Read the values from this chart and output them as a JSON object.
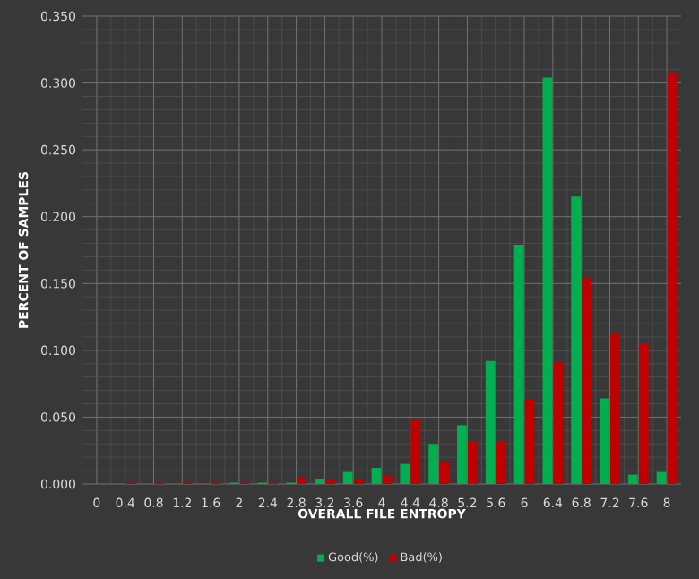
{
  "chart_data": {
    "type": "bar",
    "xlabel": "OVERALL FILE ENTROPY",
    "ylabel": "PERCENT OF SAMPLES",
    "categories": [
      "0",
      "0.4",
      "0.8",
      "1.2",
      "1.6",
      "2",
      "2.4",
      "2.8",
      "3.2",
      "3.6",
      "4",
      "4.4",
      "4.8",
      "5.2",
      "5.6",
      "6",
      "6.4",
      "6.8",
      "7.2",
      "7.6",
      "8"
    ],
    "series": [
      {
        "name": "Good(%)",
        "color": "#00b050",
        "values": [
          0,
          0,
          0,
          0,
          0,
          0.001,
          0.001,
          0.001,
          0.004,
          0.009,
          0.012,
          0.015,
          0.03,
          0.044,
          0.092,
          0.179,
          0.304,
          0.215,
          0.064,
          0.007,
          0.009
        ]
      },
      {
        "name": "Bad(%)",
        "color": "#c00000",
        "values": [
          0,
          0.001,
          0.001,
          0.001,
          0.001,
          0.001,
          0.001,
          0.005,
          0.003,
          0.004,
          0.006,
          0.048,
          0.016,
          0.032,
          0.032,
          0.063,
          0.091,
          0.154,
          0.113,
          0.105,
          0.308
        ]
      }
    ],
    "ylim": [
      0,
      0.35
    ],
    "yticks": [
      {
        "value": 0,
        "label": "0.000"
      },
      {
        "value": 0.05,
        "label": "0.050"
      },
      {
        "value": 0.1,
        "label": "0.100"
      },
      {
        "value": 0.15,
        "label": "0.150"
      },
      {
        "value": 0.2,
        "label": "0.200"
      },
      {
        "value": 0.25,
        "label": "0.250"
      },
      {
        "value": 0.3,
        "label": "0.300"
      },
      {
        "value": 0.35,
        "label": "0.350"
      }
    ],
    "grid": true,
    "legend": "bottom"
  }
}
